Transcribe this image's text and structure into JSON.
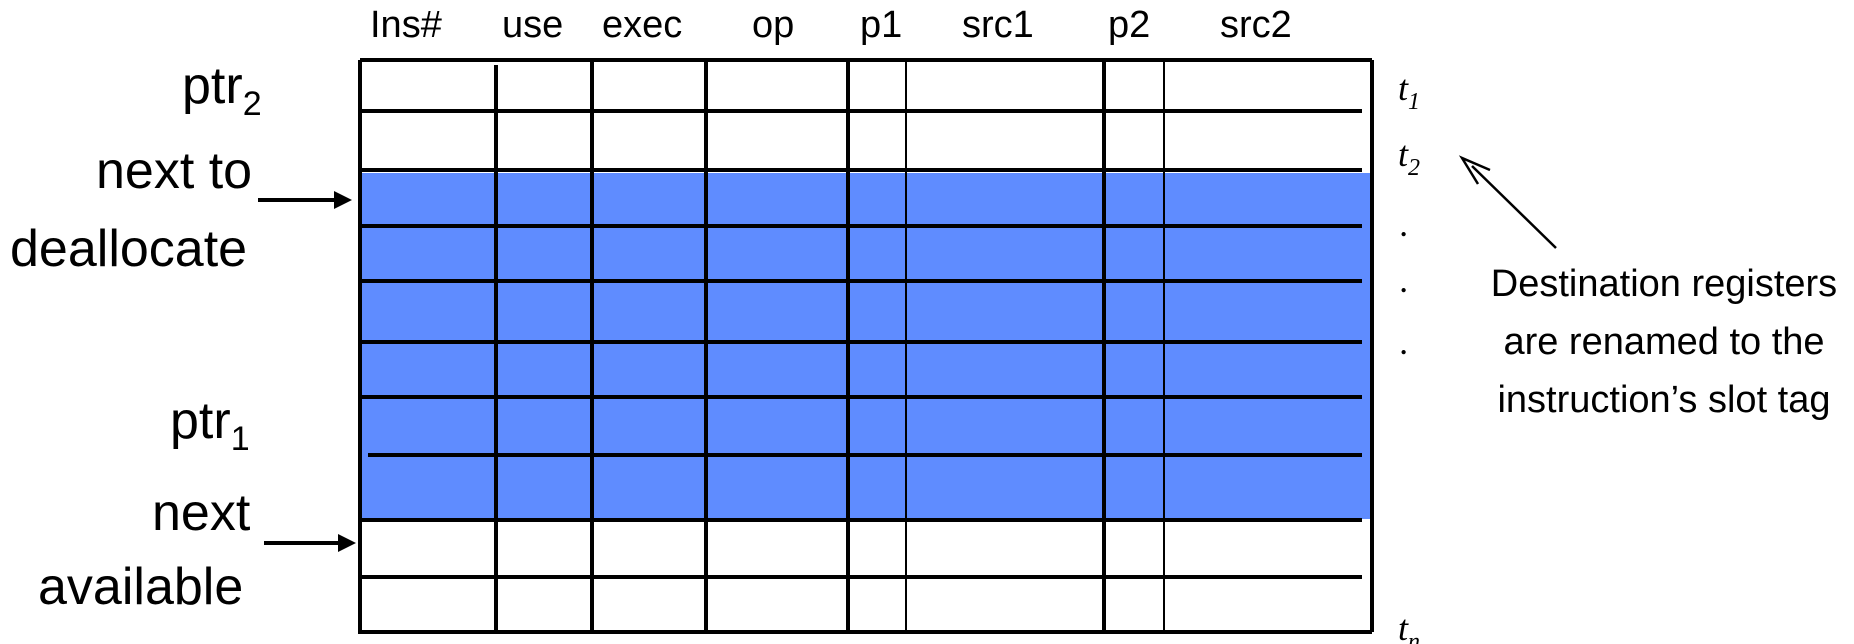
{
  "columns": [
    "Ins#",
    "use",
    "exec",
    "op",
    "p1",
    "src1",
    "p2",
    "src2"
  ],
  "pointers": {
    "ptr2": {
      "label": "ptr",
      "sub": "2",
      "desc_line1": "next to",
      "desc_line2": "deallocate"
    },
    "ptr1": {
      "label": "ptr",
      "sub": "1",
      "desc_line1": "next",
      "desc_line2": "available"
    }
  },
  "tags": {
    "t1": {
      "label": "t",
      "sub": "1"
    },
    "t2": {
      "label": "t",
      "sub": "2"
    },
    "dots": [
      ".",
      ".",
      "."
    ],
    "tn": {
      "label": "t",
      "sub": "n"
    }
  },
  "note": {
    "line1": "Destination registers",
    "line2": "are renamed to the",
    "line3": "instruction’s slot tag"
  },
  "colors": {
    "highlight": "#5f8cff",
    "line": "#000000"
  },
  "table": {
    "rows": 10,
    "highlighted_rows": [
      2,
      3,
      4,
      5,
      6,
      7
    ]
  }
}
